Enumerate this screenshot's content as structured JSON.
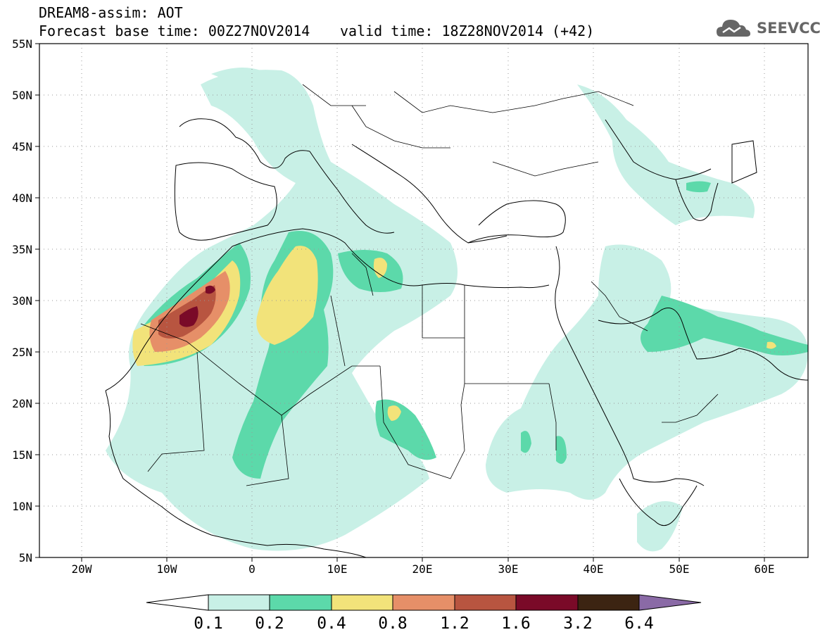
{
  "header": {
    "title": "DREAM8-assim: AOT",
    "base_time": "Forecast base time: 00Z27NOV2014",
    "valid_time": "valid time: 18Z28NOV2014 (+42)",
    "logo_text": "SEEVCCC"
  },
  "axes": {
    "lat_labels": [
      "55N",
      "50N",
      "45N",
      "40N",
      "35N",
      "30N",
      "25N",
      "20N",
      "15N",
      "10N",
      "5N"
    ],
    "lon_labels": [
      "20W",
      "10W",
      "0",
      "10E",
      "20E",
      "30E",
      "40E",
      "50E",
      "60E"
    ]
  },
  "legend": {
    "labels": [
      "0.1",
      "0.2",
      "0.4",
      "0.8",
      "1.2",
      "1.6",
      "3.2",
      "6.4"
    ],
    "colors": [
      "#c8f0e6",
      "#5cd9aa",
      "#f2e37a",
      "#e68f68",
      "#b85540",
      "#7a0a28",
      "#3c2412",
      "#8a6aa6"
    ]
  },
  "chart_data": {
    "type": "heatmap",
    "title": "DREAM8-assim: AOT",
    "variable": "AOT",
    "lat_range": [
      5,
      55
    ],
    "lon_range": [
      -25,
      65
    ],
    "color_bins": [
      0.1,
      0.2,
      0.4,
      0.8,
      1.2,
      1.6,
      3.2,
      6.4
    ]
  }
}
